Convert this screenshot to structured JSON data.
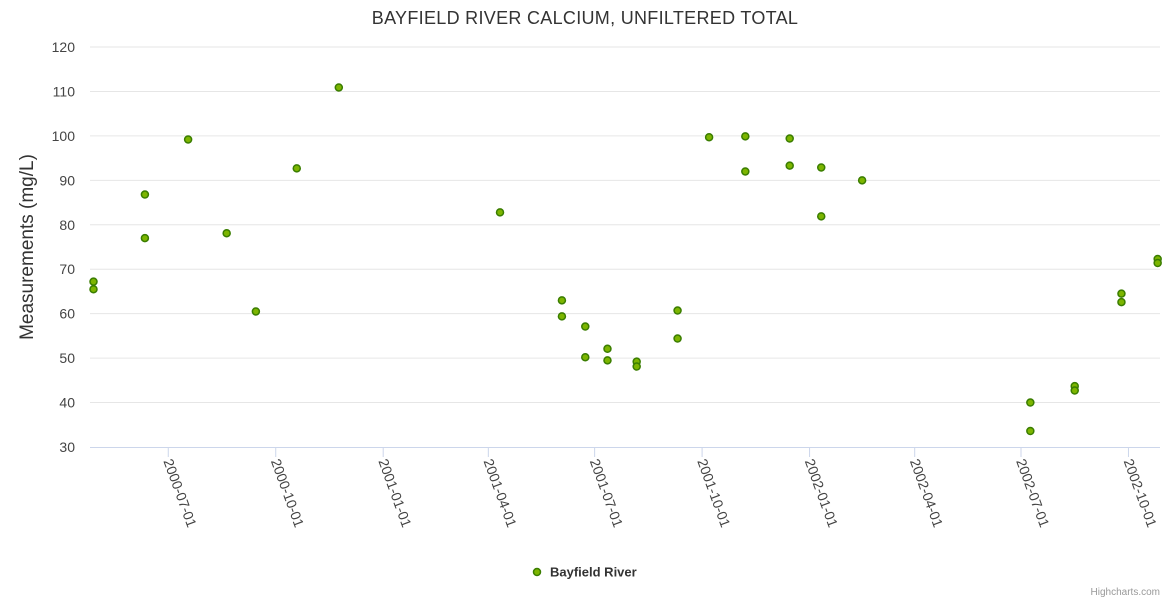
{
  "chart_data": {
    "type": "scatter",
    "title": "BAYFIELD RIVER CALCIUM, UNFILTERED TOTAL",
    "ylabel": "Measurements (mg/L)",
    "xlabel": "",
    "ylim": [
      30,
      120
    ],
    "yticks": [
      30,
      40,
      50,
      60,
      70,
      80,
      90,
      100,
      110,
      120
    ],
    "xlim": [
      "2000-04-25",
      "2002-10-28"
    ],
    "xticks": [
      "2000-07-01",
      "2000-10-01",
      "2001-01-01",
      "2001-04-01",
      "2001-07-01",
      "2001-10-01",
      "2002-01-01",
      "2002-04-01",
      "2002-07-01",
      "2002-10-01"
    ],
    "grid": true,
    "legend_position": "bottom-center",
    "series": [
      {
        "name": "Bayfield River",
        "color": "#7cb500",
        "points": [
          {
            "x": "2000-04-28",
            "y": 67.2
          },
          {
            "x": "2000-04-28",
            "y": 65.5
          },
          {
            "x": "2000-06-11",
            "y": 86.8
          },
          {
            "x": "2000-06-11",
            "y": 77.0
          },
          {
            "x": "2000-07-18",
            "y": 99.2
          },
          {
            "x": "2000-08-20",
            "y": 78.1
          },
          {
            "x": "2000-09-14",
            "y": 60.5
          },
          {
            "x": "2000-10-19",
            "y": 92.7
          },
          {
            "x": "2000-11-24",
            "y": 110.9
          },
          {
            "x": "2001-04-11",
            "y": 82.8
          },
          {
            "x": "2001-06-03",
            "y": 63.0
          },
          {
            "x": "2001-06-03",
            "y": 59.4
          },
          {
            "x": "2001-06-23",
            "y": 57.1
          },
          {
            "x": "2001-06-23",
            "y": 50.2
          },
          {
            "x": "2001-07-12",
            "y": 52.1
          },
          {
            "x": "2001-07-12",
            "y": 49.5
          },
          {
            "x": "2001-08-06",
            "y": 49.2
          },
          {
            "x": "2001-08-06",
            "y": 48.1
          },
          {
            "x": "2001-09-10",
            "y": 60.7
          },
          {
            "x": "2001-09-10",
            "y": 54.4
          },
          {
            "x": "2001-10-07",
            "y": 99.7
          },
          {
            "x": "2001-11-07",
            "y": 99.9
          },
          {
            "x": "2001-11-07",
            "y": 92.0
          },
          {
            "x": "2001-12-15",
            "y": 99.4
          },
          {
            "x": "2001-12-15",
            "y": 93.3
          },
          {
            "x": "2002-01-11",
            "y": 92.9
          },
          {
            "x": "2002-01-11",
            "y": 81.9
          },
          {
            "x": "2002-02-15",
            "y": 90.0
          },
          {
            "x": "2002-07-09",
            "y": 40.0
          },
          {
            "x": "2002-07-09",
            "y": 33.6
          },
          {
            "x": "2002-08-16",
            "y": 43.7
          },
          {
            "x": "2002-08-16",
            "y": 42.7
          },
          {
            "x": "2002-09-25",
            "y": 64.5
          },
          {
            "x": "2002-09-25",
            "y": 62.6
          },
          {
            "x": "2002-10-26",
            "y": 72.3
          },
          {
            "x": "2002-10-26",
            "y": 71.4
          }
        ]
      }
    ],
    "credits": "Highcharts.com"
  }
}
